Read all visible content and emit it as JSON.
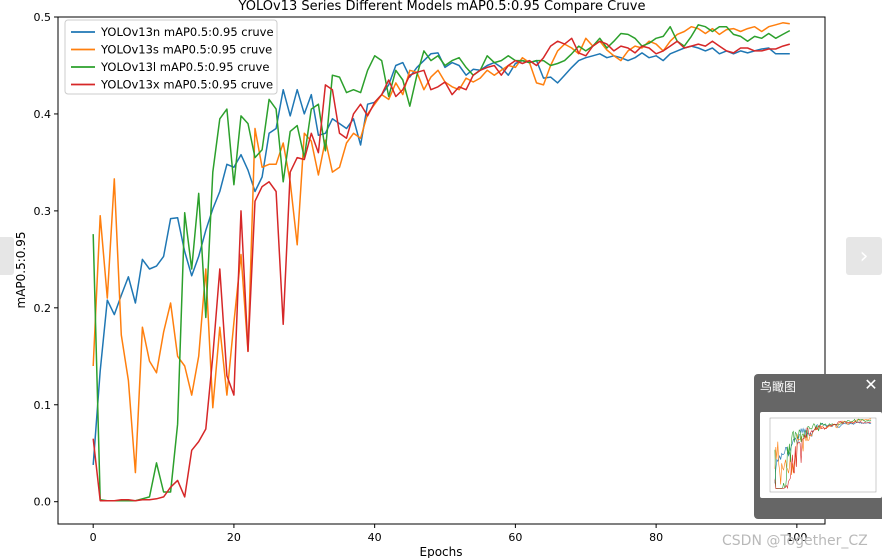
{
  "chart_data": {
    "type": "line",
    "title": "YOLOv13 Series Different Models mAP0.5:0.95 Compare Cruve",
    "xlabel": "Epochs",
    "ylabel": "mAP0.5:0.95",
    "xlim": [
      -5,
      104
    ],
    "ylim": [
      -0.023,
      0.5
    ],
    "xticks": [
      0,
      20,
      40,
      60,
      80,
      100
    ],
    "yticks": [
      0.0,
      0.1,
      0.2,
      0.3,
      0.4,
      0.5
    ],
    "ytick_labels": [
      "0.0",
      "0.1",
      "0.2",
      "0.3",
      "0.4",
      "0.5"
    ],
    "grid": false,
    "legend_position": "top-left",
    "series": [
      {
        "name": "YOLOv13n mAP0.5:0.95 cruve",
        "color": "#1f77b4",
        "values": [
          0.038,
          0.135,
          0.208,
          0.193,
          0.213,
          0.232,
          0.205,
          0.25,
          0.24,
          0.243,
          0.253,
          0.292,
          0.293,
          0.258,
          0.233,
          0.253,
          0.28,
          0.302,
          0.32,
          0.348,
          0.345,
          0.358,
          0.342,
          0.32,
          0.335,
          0.38,
          0.385,
          0.425,
          0.398,
          0.425,
          0.4,
          0.42,
          0.378,
          0.38,
          0.395,
          0.39,
          0.385,
          0.395,
          0.368,
          0.41,
          0.412,
          0.42,
          0.43,
          0.45,
          0.453,
          0.438,
          0.448,
          0.455,
          0.462,
          0.463,
          0.448,
          0.453,
          0.45,
          0.44,
          0.446,
          0.445,
          0.45,
          0.453,
          0.448,
          0.44,
          0.452,
          0.455,
          0.453,
          0.455,
          0.437,
          0.438,
          0.432,
          0.44,
          0.448,
          0.455,
          0.458,
          0.46,
          0.462,
          0.458,
          0.46,
          0.458,
          0.455,
          0.458,
          0.463,
          0.458,
          0.46,
          0.455,
          0.462,
          0.465,
          0.468,
          0.47,
          0.468,
          0.465,
          0.468,
          0.462,
          0.465,
          0.462,
          0.465,
          0.463,
          0.465,
          0.467,
          0.468,
          0.462,
          0.462,
          0.462
        ]
      },
      {
        "name": "YOLOv13s mAP0.5:0.95 cruve",
        "color": "#ff7f0e",
        "values": [
          0.14,
          0.295,
          0.21,
          0.333,
          0.172,
          0.125,
          0.03,
          0.18,
          0.145,
          0.133,
          0.175,
          0.205,
          0.15,
          0.14,
          0.11,
          0.15,
          0.24,
          0.097,
          0.18,
          0.11,
          0.185,
          0.255,
          0.155,
          0.385,
          0.345,
          0.348,
          0.348,
          0.37,
          0.33,
          0.265,
          0.38,
          0.372,
          0.337,
          0.373,
          0.34,
          0.345,
          0.37,
          0.38,
          0.375,
          0.4,
          0.41,
          0.42,
          0.415,
          0.432,
          0.42,
          0.445,
          0.443,
          0.425,
          0.438,
          0.445,
          0.433,
          0.428,
          0.425,
          0.437,
          0.433,
          0.437,
          0.445,
          0.44,
          0.445,
          0.45,
          0.448,
          0.458,
          0.453,
          0.432,
          0.43,
          0.45,
          0.465,
          0.472,
          0.468,
          0.462,
          0.478,
          0.47,
          0.475,
          0.466,
          0.46,
          0.455,
          0.465,
          0.47,
          0.468,
          0.475,
          0.472,
          0.465,
          0.475,
          0.482,
          0.485,
          0.49,
          0.488,
          0.483,
          0.488,
          0.482,
          0.487,
          0.488,
          0.485,
          0.488,
          0.49,
          0.485,
          0.49,
          0.492,
          0.494,
          0.493
        ]
      },
      {
        "name": "YOLOv13l mAP0.5:0.95 cruve",
        "color": "#2ca02c",
        "values": [
          0.276,
          0.002,
          0.001,
          0.001,
          0.001,
          0.001,
          0.001,
          0.003,
          0.005,
          0.04,
          0.01,
          0.01,
          0.08,
          0.298,
          0.24,
          0.318,
          0.19,
          0.34,
          0.395,
          0.405,
          0.327,
          0.398,
          0.39,
          0.355,
          0.363,
          0.415,
          0.405,
          0.33,
          0.382,
          0.388,
          0.355,
          0.405,
          0.41,
          0.362,
          0.44,
          0.438,
          0.422,
          0.425,
          0.422,
          0.445,
          0.46,
          0.455,
          0.418,
          0.445,
          0.435,
          0.408,
          0.44,
          0.465,
          0.455,
          0.46,
          0.45,
          0.455,
          0.458,
          0.448,
          0.44,
          0.445,
          0.46,
          0.453,
          0.455,
          0.46,
          0.455,
          0.455,
          0.453,
          0.455,
          0.455,
          0.45,
          0.452,
          0.455,
          0.462,
          0.47,
          0.465,
          0.47,
          0.478,
          0.468,
          0.475,
          0.483,
          0.482,
          0.478,
          0.47,
          0.473,
          0.478,
          0.48,
          0.49,
          0.475,
          0.47,
          0.48,
          0.492,
          0.49,
          0.485,
          0.49,
          0.49,
          0.482,
          0.48,
          0.475,
          0.48,
          0.478,
          0.483,
          0.478,
          0.482,
          0.486
        ]
      },
      {
        "name": "YOLOv13x mAP0.5:0.95 cruve",
        "color": "#d62728",
        "values": [
          0.065,
          0.001,
          0.001,
          0.001,
          0.002,
          0.002,
          0.001,
          0.002,
          0.002,
          0.003,
          0.005,
          0.015,
          0.022,
          0.005,
          0.053,
          0.062,
          0.075,
          0.15,
          0.24,
          0.13,
          0.11,
          0.3,
          0.155,
          0.31,
          0.325,
          0.33,
          0.32,
          0.183,
          0.34,
          0.355,
          0.353,
          0.38,
          0.36,
          0.43,
          0.425,
          0.38,
          0.375,
          0.4,
          0.41,
          0.398,
          0.412,
          0.42,
          0.435,
          0.418,
          0.425,
          0.44,
          0.443,
          0.445,
          0.425,
          0.428,
          0.433,
          0.42,
          0.428,
          0.425,
          0.44,
          0.445,
          0.448,
          0.45,
          0.44,
          0.45,
          0.455,
          0.452,
          0.455,
          0.45,
          0.458,
          0.47,
          0.475,
          0.472,
          0.478,
          0.463,
          0.46,
          0.47,
          0.475,
          0.472,
          0.465,
          0.47,
          0.468,
          0.463,
          0.47,
          0.468,
          0.462,
          0.465,
          0.47,
          0.475,
          0.468,
          0.47,
          0.472,
          0.47,
          0.475,
          0.47,
          0.465,
          0.463,
          0.468,
          0.468,
          0.465,
          0.465,
          0.467,
          0.467,
          0.47,
          0.472
        ]
      }
    ]
  },
  "ui": {
    "prev_icon": "chevron-left-icon",
    "next_icon": "chevron-right-icon",
    "next_glyph": "›",
    "minimap_title": "鸟瞰图",
    "minimap_close": "✕",
    "watermark": "CSDN @Together_CZ"
  }
}
